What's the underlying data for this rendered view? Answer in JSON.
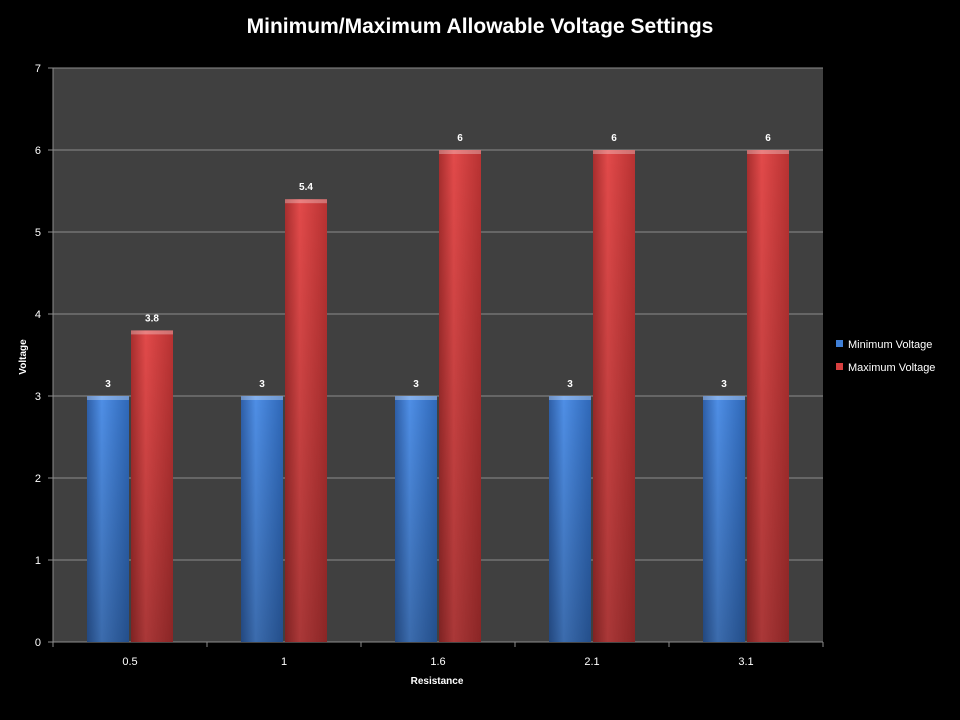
{
  "chart_data": {
    "type": "bar",
    "title": "Minimum/Maximum Allowable Voltage Settings",
    "xlabel": "Resistance",
    "ylabel": "Voltage",
    "categories": [
      "0.5",
      "1",
      "1.6",
      "2.1",
      "3.1"
    ],
    "series": [
      {
        "name": "Minimum Voltage",
        "color": "#3f7fd6",
        "values": [
          3,
          3,
          3,
          3,
          3
        ]
      },
      {
        "name": "Maximum Voltage",
        "color": "#d63f3f",
        "values": [
          3.8,
          5.4,
          6,
          6,
          6
        ]
      }
    ],
    "ylim": [
      0,
      7
    ],
    "yticks": [
      0,
      1,
      2,
      3,
      4,
      5,
      6,
      7
    ],
    "grid": true,
    "legend": "right",
    "colors": {
      "background": "#000000",
      "plot_area": "#404040",
      "gridline": "#8c8c8c",
      "text": "#ffffff"
    }
  }
}
